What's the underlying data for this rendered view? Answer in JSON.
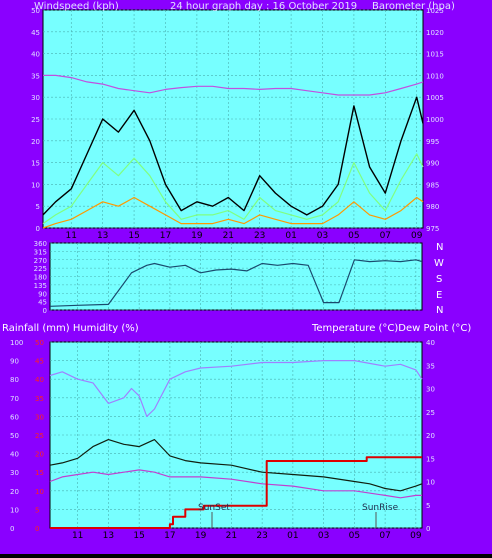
{
  "top": {
    "left_title": "Windspeed (kph)",
    "center_title": "24 hour graph day : 16 October 2019",
    "right_title": "Barometer (hpa)"
  },
  "middle": {
    "compass": [
      "N",
      "W",
      "S",
      "E",
      "N"
    ]
  },
  "bottom": {
    "left_title": "Rainfall (mm)  Humidity (%)",
    "right_title": "Temperature (°C)Dew Point (°C)",
    "sunset_label": "SunSet",
    "sunrise_label": "SunRise"
  },
  "colors": {
    "frame": "#8a00ff",
    "plot_bg": "#77ffff",
    "grid": "#4ab0b0",
    "axis_text": "#e0e0ff",
    "barometer": "#c050e0",
    "wind_avg": "#80ff80",
    "wind_gust": "#000000",
    "wind_min": "#ff9900",
    "direction": "#1a4b6e",
    "humidity": "#a080ff",
    "temperature": "#102010",
    "dewpoint": "#c040d0",
    "rain": "#dd0000",
    "rain_axis": "#ff2020"
  },
  "chart_data": [
    {
      "type": "line",
      "x_ticks": [
        "11",
        "13",
        "15",
        "17",
        "19",
        "21",
        "23",
        "01",
        "03",
        "05",
        "07",
        "09"
      ],
      "left_axis": {
        "ylim": [
          0,
          50
        ],
        "ticks": [
          0,
          5,
          10,
          15,
          20,
          25,
          30,
          35,
          40,
          45,
          50
        ]
      },
      "right_axis": {
        "ylim": [
          975,
          1025
        ],
        "ticks": [
          975,
          980,
          985,
          990,
          995,
          1000,
          1005,
          1010,
          1015,
          1020,
          1025
        ]
      },
      "series": [
        {
          "key": "barometer",
          "axis": "right",
          "x": [
            9.2,
            10,
            11,
            12,
            13,
            14,
            15,
            16,
            17,
            18,
            19,
            20,
            21,
            22,
            23,
            24,
            25,
            26,
            27,
            28,
            29,
            30,
            31,
            32,
            33,
            33.4
          ],
          "y": [
            1010,
            1010,
            1009.5,
            1008.5,
            1008,
            1007,
            1006.5,
            1006,
            1006.8,
            1007.2,
            1007.5,
            1007.5,
            1007,
            1007,
            1006.8,
            1007,
            1007,
            1006.5,
            1006,
            1005.5,
            1005.5,
            1005.5,
            1006,
            1007,
            1008,
            1008.5
          ]
        },
        {
          "key": "wind_gust",
          "axis": "left",
          "x": [
            9.2,
            10,
            11,
            12,
            13,
            14,
            15,
            16,
            17,
            18,
            19,
            20,
            21,
            22,
            23,
            24,
            25,
            26,
            27,
            28,
            29,
            30,
            31,
            32,
            33,
            33.4
          ],
          "y": [
            3,
            6,
            9,
            17,
            25,
            22,
            27,
            20,
            10,
            4,
            6,
            5,
            7,
            4,
            12,
            8,
            5,
            3,
            5,
            10,
            28,
            14,
            8,
            20,
            30,
            24
          ]
        },
        {
          "key": "wind_avg",
          "axis": "left",
          "x": [
            9.2,
            10,
            11,
            12,
            13,
            14,
            15,
            16,
            17,
            18,
            19,
            20,
            21,
            22,
            23,
            24,
            25,
            26,
            27,
            28,
            29,
            30,
            31,
            32,
            33,
            33.4
          ],
          "y": [
            1,
            3,
            5,
            10,
            15,
            12,
            16,
            12,
            6,
            2,
            3,
            3,
            4,
            2,
            7,
            4,
            3,
            2,
            3,
            6,
            15,
            8,
            4,
            11,
            17,
            14
          ]
        },
        {
          "key": "wind_min",
          "axis": "left",
          "x": [
            9.2,
            10,
            11,
            12,
            13,
            14,
            15,
            16,
            17,
            18,
            19,
            20,
            21,
            22,
            23,
            24,
            25,
            26,
            27,
            28,
            29,
            30,
            31,
            32,
            33,
            33.4
          ],
          "y": [
            0,
            1,
            2,
            4,
            6,
            5,
            7,
            5,
            3,
            1,
            1,
            1,
            2,
            1,
            3,
            2,
            1,
            1,
            1,
            3,
            6,
            3,
            2,
            4,
            7,
            6
          ]
        }
      ]
    },
    {
      "type": "line",
      "x_ticks": [],
      "left_axis": {
        "ylim": [
          0,
          360
        ],
        "ticks": [
          0,
          45,
          90,
          135,
          180,
          225,
          270,
          315,
          360
        ]
      },
      "series": [
        {
          "key": "direction",
          "axis": "left",
          "x": [
            9.2,
            11,
            13,
            14.5,
            15.5,
            16,
            17,
            18,
            19,
            20,
            21,
            22,
            23,
            24,
            25,
            26,
            27,
            28,
            29,
            30,
            31,
            32,
            33,
            33.4
          ],
          "y": [
            20,
            25,
            30,
            200,
            240,
            250,
            230,
            240,
            200,
            215,
            220,
            210,
            250,
            240,
            250,
            240,
            40,
            40,
            270,
            260,
            265,
            260,
            270,
            260
          ]
        }
      ]
    },
    {
      "type": "line",
      "x_ticks": [
        "11",
        "13",
        "15",
        "17",
        "19",
        "21",
        "23",
        "01",
        "03",
        "05",
        "07",
        "09"
      ],
      "left_axis": {
        "ylim": [
          0,
          100
        ],
        "ticks": [
          0,
          10,
          20,
          30,
          40,
          50,
          60,
          70,
          80,
          90,
          100
        ]
      },
      "rain_axis": {
        "ylim": [
          0,
          50
        ],
        "ticks": [
          0,
          5,
          10,
          15,
          20,
          25,
          30,
          35,
          40,
          45,
          50
        ]
      },
      "right_axis": {
        "ylim": [
          0,
          40
        ],
        "ticks": [
          0,
          5,
          10,
          15,
          20,
          25,
          30,
          35,
          40
        ]
      },
      "series": [
        {
          "key": "humidity",
          "axis": "left",
          "x": [
            9.2,
            10,
            11,
            12,
            13,
            14,
            14.5,
            15,
            15.5,
            16,
            17,
            18,
            19,
            21,
            23,
            25,
            27,
            29,
            31,
            32,
            33,
            33.4
          ],
          "y": [
            82,
            84,
            80,
            78,
            67,
            70,
            75,
            71,
            60,
            64,
            80,
            84,
            86,
            87,
            89,
            89,
            90,
            90,
            87,
            88,
            85,
            80
          ]
        },
        {
          "key": "temperature",
          "axis": "right",
          "x": [
            9.2,
            10,
            11,
            12,
            13,
            14,
            15,
            16,
            17,
            18,
            19,
            21,
            23,
            25,
            27,
            29,
            30,
            31,
            32,
            33,
            33.4
          ],
          "y": [
            13.5,
            14,
            15,
            17.5,
            19,
            18,
            17.5,
            19,
            15.5,
            14.5,
            14,
            13.5,
            12,
            11.5,
            11,
            10,
            9.5,
            8.5,
            8,
            9,
            9.5
          ]
        },
        {
          "key": "dewpoint",
          "axis": "right",
          "x": [
            9.2,
            10,
            11,
            12,
            13,
            14,
            15,
            16,
            17,
            18,
            19,
            21,
            23,
            25,
            27,
            29,
            31,
            32,
            33,
            33.4
          ],
          "y": [
            10,
            11,
            11.5,
            12,
            11.5,
            12,
            12.5,
            12,
            11,
            11,
            11,
            10.5,
            9.5,
            9,
            8,
            8,
            7,
            6.5,
            7,
            7
          ]
        },
        {
          "key": "rain",
          "axis": "rain",
          "x": [
            9.2,
            16.4,
            17,
            17.2,
            17.6,
            18,
            18.6,
            19.2,
            21.8,
            23.3,
            23.3,
            29,
            29.8,
            32.8,
            33.4
          ],
          "y": [
            0,
            0,
            1,
            3,
            3,
            5,
            5,
            6,
            6,
            6,
            18,
            18,
            19,
            19,
            19
          ],
          "step": true
        }
      ]
    }
  ]
}
